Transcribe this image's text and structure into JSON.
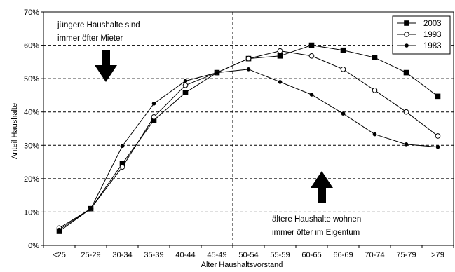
{
  "chart_data": {
    "type": "line",
    "title": "",
    "xlabel": "Alter Haushaltsvorstand",
    "ylabel": "Anteil Haushalte",
    "categories": [
      "<25",
      "25-29",
      "30-34",
      "35-39",
      "40-44",
      "45-49",
      "50-54",
      "55-59",
      "60-65",
      "66-69",
      "70-74",
      "75-79",
      ">79"
    ],
    "yticks": [
      "0%",
      "10%",
      "20%",
      "30%",
      "40%",
      "50%",
      "60%",
      "70%"
    ],
    "ylim": [
      0,
      70
    ],
    "grid": "horizontal dashed",
    "divider_after_category": "45-49",
    "legend_position": "top-right",
    "series": [
      {
        "name": "2003",
        "marker": "filled-square",
        "color": "#000000",
        "values": [
          4.2,
          11.0,
          24.5,
          37.5,
          45.8,
          51.8,
          56.0,
          56.8,
          60.0,
          58.5,
          56.3,
          51.8,
          44.7
        ]
      },
      {
        "name": "1993",
        "marker": "open-circle",
        "color": "#000000",
        "values": [
          5.2,
          11.0,
          23.5,
          38.5,
          48.0,
          51.8,
          56.0,
          58.3,
          56.8,
          52.8,
          46.5,
          40.0,
          32.8
        ]
      },
      {
        "name": "1983",
        "marker": "filled-circle",
        "color": "#000000",
        "values": [
          4.7,
          11.0,
          29.8,
          42.5,
          49.3,
          51.8,
          52.8,
          49.0,
          45.2,
          39.5,
          33.3,
          30.3,
          29.5
        ]
      }
    ],
    "annotations": {
      "top_left_line1": "jüngere Haushalte sind",
      "top_left_line2": "immer öfter Mieter",
      "bottom_right_line1": "ältere Haushalte wohnen",
      "bottom_right_line2": "immer öfter im Eigentum"
    }
  }
}
